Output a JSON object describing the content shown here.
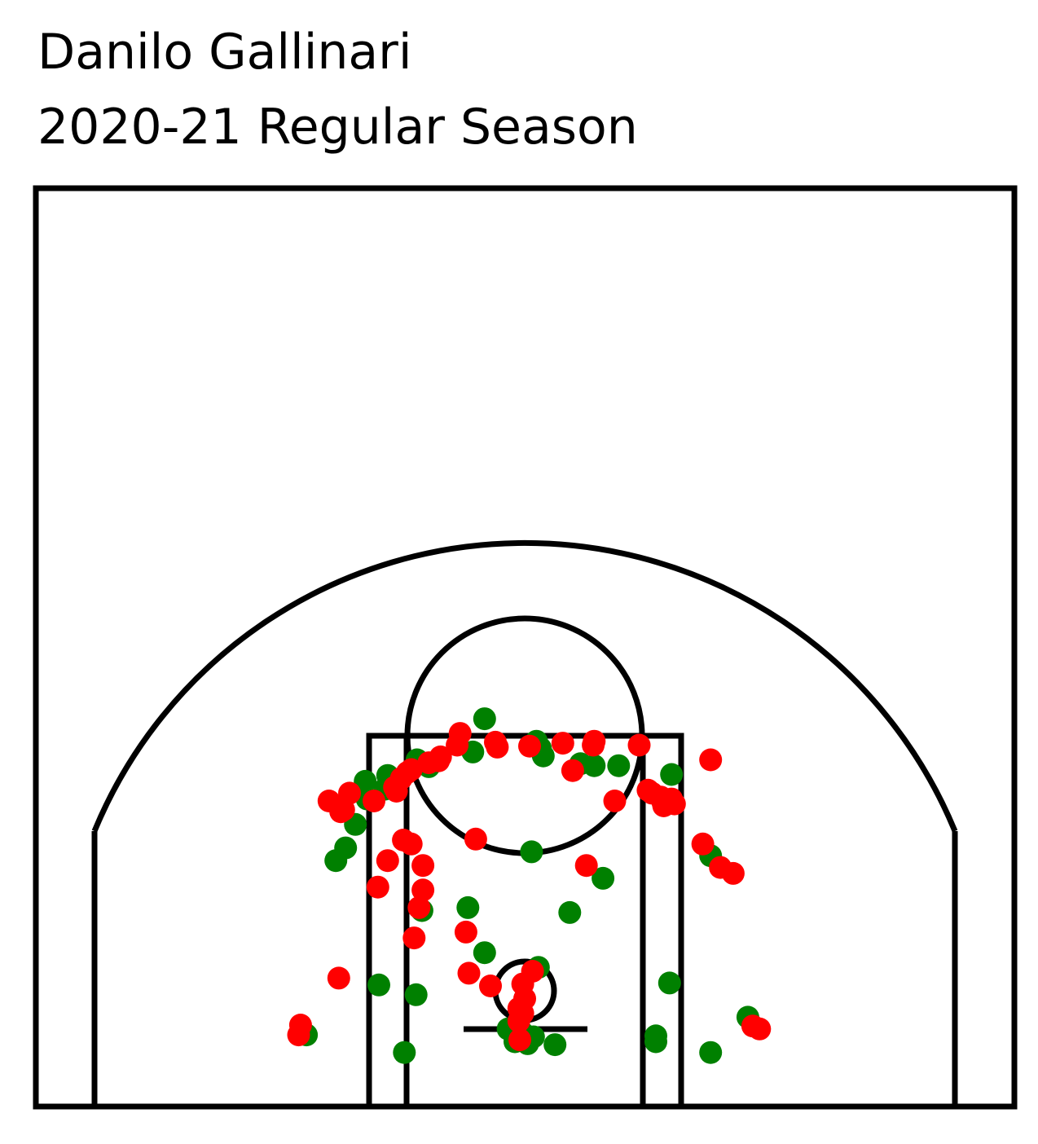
{
  "chart_data": {
    "type": "scatter",
    "title": "Danilo Gallinari",
    "subtitle": "2020-21 Regular Season",
    "xlabel": "",
    "ylabel": "",
    "xlim": [
      -250,
      250
    ],
    "ylim": [
      -52.5,
      417.5
    ],
    "grid": false,
    "colors": {
      "made": "#008000",
      "missed": "#ff0000"
    },
    "series": [
      {
        "color": "#008000",
        "points": [
          [
            -41,
            278
          ],
          [
            12,
            255
          ],
          [
            16,
            248
          ],
          [
            19,
            240
          ],
          [
            57,
            232
          ],
          [
            71,
            230
          ],
          [
            96,
            230
          ],
          [
            -53,
            244
          ],
          [
            -110,
            236
          ],
          [
            -98,
            229
          ],
          [
            -140,
            220
          ],
          [
            -143,
            206
          ],
          [
            -161,
            196
          ],
          [
            -173,
            170
          ],
          [
            -183,
            146
          ],
          [
            -193,
            133
          ],
          [
            -163,
            214
          ],
          [
            150,
            221
          ],
          [
            190,
            138
          ],
          [
            7,
            142
          ],
          [
            80,
            115
          ],
          [
            -58,
            85
          ],
          [
            46,
            80
          ],
          [
            -105,
            82
          ],
          [
            -41,
            39
          ],
          [
            14,
            24
          ],
          [
            -149,
            6
          ],
          [
            -111,
            -4
          ],
          [
            148,
            8
          ],
          [
            228,
            -27
          ],
          [
            -17,
            -39
          ],
          [
            -3,
            -42
          ],
          [
            2,
            -46
          ],
          [
            9,
            -47
          ],
          [
            -4,
            -49
          ],
          [
            -10,
            -52
          ],
          [
            3,
            -54
          ],
          [
            31,
            -55
          ],
          [
            134,
            -46
          ],
          [
            134,
            -52
          ],
          [
            190,
            -63
          ],
          [
            -223,
            -45
          ],
          [
            -123,
            -63
          ]
        ]
      },
      {
        "color": "#ff0000",
        "points": [
          [
            -66,
            263
          ],
          [
            -69,
            251
          ],
          [
            -30,
            254
          ],
          [
            -28,
            249
          ],
          [
            5,
            250
          ],
          [
            39,
            253
          ],
          [
            71,
            255
          ],
          [
            70,
            251
          ],
          [
            117,
            251
          ],
          [
            190,
            236
          ],
          [
            -86,
            239
          ],
          [
            -88,
            235
          ],
          [
            -98,
            233
          ],
          [
            -116,
            226
          ],
          [
            -120,
            223
          ],
          [
            -126,
            217
          ],
          [
            -133,
            208
          ],
          [
            -131,
            204
          ],
          [
            -154,
            194
          ],
          [
            -179,
            202
          ],
          [
            -185,
            185
          ],
          [
            -200,
            194
          ],
          [
            -188,
            183
          ],
          [
            -124,
            154
          ],
          [
            -116,
            150
          ],
          [
            49,
            225
          ],
          [
            126,
            205
          ],
          [
            130,
            202
          ],
          [
            139,
            198
          ],
          [
            141,
            193
          ],
          [
            142,
            189
          ],
          [
            150,
            196
          ],
          [
            153,
            191
          ],
          [
            92,
            194
          ],
          [
            -50,
            155
          ],
          [
            -140,
            133
          ],
          [
            -104,
            128
          ],
          [
            -104,
            103
          ],
          [
            -150,
            106
          ],
          [
            -108,
            85
          ],
          [
            63,
            128
          ],
          [
            182,
            150
          ],
          [
            200,
            126
          ],
          [
            213,
            120
          ],
          [
            -60,
            60
          ],
          [
            -113,
            54
          ],
          [
            -190,
            13
          ],
          [
            -57,
            18
          ],
          [
            8,
            20
          ],
          [
            -35,
            5
          ],
          [
            -2,
            7
          ],
          [
            0,
            -8
          ],
          [
            -6,
            -18
          ],
          [
            -2,
            -23
          ],
          [
            -6,
            -31
          ],
          [
            -229,
            -35
          ],
          [
            -231,
            -45
          ],
          [
            233,
            -36
          ],
          [
            240,
            -39
          ],
          [
            -5,
            -50
          ]
        ]
      }
    ]
  }
}
